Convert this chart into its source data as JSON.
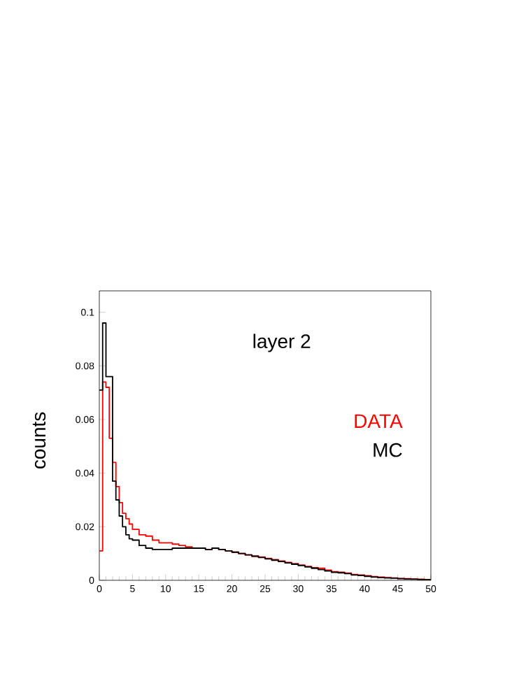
{
  "chart_data": {
    "type": "histogram",
    "title": "layer 2",
    "ylabel": "counts",
    "bins": [
      0,
      0.5,
      1,
      1.5,
      2,
      2.5,
      3,
      3.5,
      4,
      4.5,
      5,
      6,
      7,
      8,
      9,
      10,
      11,
      12,
      13,
      14,
      15,
      16,
      17,
      18,
      19,
      20,
      21,
      22,
      23,
      24,
      25,
      26,
      27,
      28,
      29,
      30,
      31,
      32,
      33,
      34,
      35,
      36,
      37,
      38,
      39,
      40,
      41,
      42,
      43,
      44,
      45,
      46,
      47,
      48,
      49,
      50
    ],
    "series": [
      {
        "name": "DATA",
        "color": "#ff0000",
        "values": [
          0.011,
          0.074,
          0.072,
          0.053,
          0.044,
          0.035,
          0.029,
          0.025,
          0.023,
          0.021,
          0.019,
          0.017,
          0.0165,
          0.015,
          0.014,
          0.014,
          0.0135,
          0.013,
          0.0125,
          0.012,
          0.012,
          0.0115,
          0.012,
          0.0115,
          0.011,
          0.0105,
          0.01,
          0.0095,
          0.009,
          0.0087,
          0.0082,
          0.0077,
          0.0072,
          0.0067,
          0.0062,
          0.0057,
          0.0052,
          0.0047,
          0.0045,
          0.0038,
          0.0032,
          0.003,
          0.0027,
          0.0022,
          0.002,
          0.0017,
          0.0014,
          0.0012,
          0.001,
          0.0009,
          0.0007,
          0.0006,
          0.0005,
          0.0004,
          0.0003
        ]
      },
      {
        "name": "MC",
        "color": "#000000",
        "values": [
          0.071,
          0.096,
          0.076,
          0.076,
          0.037,
          0.03,
          0.024,
          0.02,
          0.017,
          0.0155,
          0.015,
          0.013,
          0.012,
          0.0115,
          0.0115,
          0.0115,
          0.012,
          0.012,
          0.012,
          0.012,
          0.012,
          0.0115,
          0.012,
          0.0115,
          0.011,
          0.0105,
          0.01,
          0.0095,
          0.009,
          0.0085,
          0.008,
          0.0075,
          0.007,
          0.0065,
          0.006,
          0.0055,
          0.005,
          0.0045,
          0.004,
          0.0035,
          0.003,
          0.0028,
          0.0025,
          0.002,
          0.0018,
          0.0015,
          0.0012,
          0.001,
          0.0009,
          0.0008,
          0.0006,
          0.0005,
          0.0004,
          0.0003,
          0.0003
        ]
      }
    ],
    "xlim": [
      0,
      50
    ],
    "ylim": [
      0,
      0.108
    ],
    "xticks": [
      0,
      5,
      10,
      15,
      20,
      25,
      30,
      35,
      40,
      45,
      50
    ],
    "yticks": [
      0,
      0.02,
      0.04,
      0.06,
      0.08,
      0.1
    ],
    "legend": "right",
    "grid": false
  }
}
